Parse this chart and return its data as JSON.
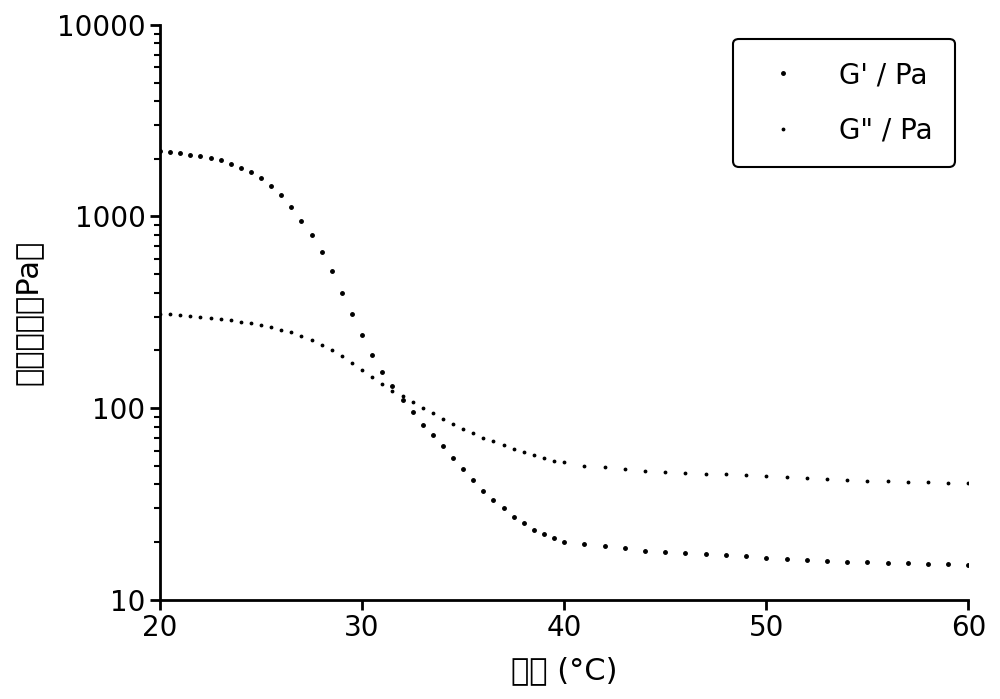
{
  "title": "",
  "xlabel": "温度 (°C)",
  "ylabel": "剪切模量（Pa）",
  "xlim": [
    20,
    60
  ],
  "ylim": [
    10,
    10000
  ],
  "xticks": [
    20,
    30,
    40,
    50,
    60
  ],
  "yticks": [
    10,
    100,
    1000,
    10000
  ],
  "ytick_labels": [
    "10",
    "100",
    "1000",
    "10000"
  ],
  "legend_labels": [
    "G' / Pa",
    "G\" / Pa"
  ],
  "G_prime_x": [
    20,
    20.5,
    21,
    21.5,
    22,
    22.5,
    23,
    23.5,
    24,
    24.5,
    25,
    25.5,
    26,
    26.5,
    27,
    27.5,
    28,
    28.5,
    29,
    29.5,
    30,
    30.5,
    31,
    31.5,
    32,
    32.5,
    33,
    33.5,
    34,
    34.5,
    35,
    35.5,
    36,
    36.5,
    37,
    37.5,
    38,
    38.5,
    39,
    39.5,
    40,
    41,
    42,
    43,
    44,
    45,
    46,
    47,
    48,
    49,
    50,
    51,
    52,
    53,
    54,
    55,
    56,
    57,
    58,
    59,
    60
  ],
  "G_prime_y": [
    2200,
    2180,
    2150,
    2100,
    2060,
    2010,
    1960,
    1890,
    1800,
    1700,
    1580,
    1450,
    1290,
    1120,
    950,
    800,
    650,
    520,
    400,
    310,
    240,
    190,
    155,
    130,
    110,
    95,
    82,
    72,
    63,
    55,
    48,
    42,
    37,
    33,
    30,
    27,
    25,
    23,
    22,
    21,
    20,
    19.5,
    19,
    18.5,
    18,
    17.8,
    17.5,
    17.3,
    17,
    16.8,
    16.5,
    16.3,
    16.1,
    16,
    15.8,
    15.7,
    15.6,
    15.5,
    15.4,
    15.3,
    15.2
  ],
  "G_double_prime_x": [
    20,
    20.5,
    21,
    21.5,
    22,
    22.5,
    23,
    23.5,
    24,
    24.5,
    25,
    25.5,
    26,
    26.5,
    27,
    27.5,
    28,
    28.5,
    29,
    29.5,
    30,
    30.5,
    31,
    31.5,
    32,
    32.5,
    33,
    33.5,
    34,
    34.5,
    35,
    35.5,
    36,
    36.5,
    37,
    37.5,
    38,
    38.5,
    39,
    39.5,
    40,
    41,
    42,
    43,
    44,
    45,
    46,
    47,
    48,
    49,
    50,
    51,
    52,
    53,
    54,
    55,
    56,
    57,
    58,
    59,
    60
  ],
  "G_double_prime_y": [
    310,
    308,
    305,
    302,
    299,
    296,
    292,
    288,
    283,
    278,
    272,
    265,
    257,
    248,
    238,
    226,
    214,
    200,
    186,
    171,
    158,
    145,
    133,
    123,
    115,
    107,
    100,
    94,
    88,
    83,
    78,
    74,
    70,
    67,
    64,
    61,
    59,
    57,
    55,
    53,
    52,
    50,
    49,
    48,
    47,
    46.5,
    46,
    45.5,
    45,
    44.5,
    44,
    43.5,
    43,
    42.5,
    42,
    41.8,
    41.5,
    41.2,
    41,
    40.8,
    40.5
  ],
  "dot_color": "#000000",
  "background_color": "#ffffff",
  "markersize_G_prime": 5,
  "markersize_G_double_prime": 3.5,
  "fontsize_labels": 22,
  "fontsize_ticks": 20,
  "fontsize_legend": 20
}
